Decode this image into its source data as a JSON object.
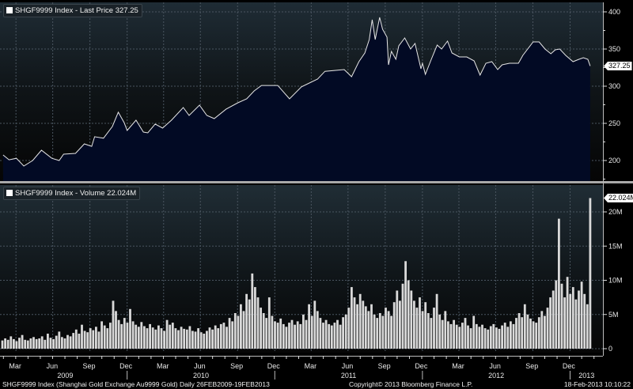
{
  "colors": {
    "price_fill_top": "#1b7486",
    "price_fill_bottom": "#020a24",
    "line": "#e6e6e6",
    "volume_bar": "#d9d9d9",
    "panel_top": "#1e2b33"
  },
  "chart_data": [
    {
      "type": "area",
      "title": "SHGF9999 Index - Last Price 327.25",
      "legend": "SHGF9999 Index - Last Price 327.25",
      "last_value_label": "327.25",
      "ylim": [
        172,
        412
      ],
      "y_ticks": [
        200,
        250,
        300,
        350,
        400
      ],
      "y_tick_labels": [
        "200",
        "250",
        "300",
        "350",
        "400"
      ],
      "grid": true,
      "x_unit": "decimal year",
      "points": [
        [
          2009.16,
          207.4
        ],
        [
          2009.2,
          201
        ],
        [
          2009.25,
          203
        ],
        [
          2009.3,
          192.6
        ],
        [
          2009.36,
          200
        ],
        [
          2009.42,
          213.8
        ],
        [
          2009.49,
          203
        ],
        [
          2009.54,
          200
        ],
        [
          2009.57,
          208.5
        ],
        [
          2009.65,
          209.6
        ],
        [
          2009.71,
          222.3
        ],
        [
          2009.76,
          219
        ],
        [
          2009.78,
          232
        ],
        [
          2009.84,
          230
        ],
        [
          2009.9,
          245.7
        ],
        [
          2009.94,
          265
        ],
        [
          2009.98,
          251
        ],
        [
          2010.0,
          240.4
        ],
        [
          2010.06,
          254.3
        ],
        [
          2010.11,
          238.3
        ],
        [
          2010.14,
          237.2
        ],
        [
          2010.19,
          249
        ],
        [
          2010.24,
          243.6
        ],
        [
          2010.3,
          254.3
        ],
        [
          2010.38,
          271.3
        ],
        [
          2010.42,
          260.6
        ],
        [
          2010.49,
          274.5
        ],
        [
          2010.54,
          260.6
        ],
        [
          2010.59,
          256.4
        ],
        [
          2010.67,
          269
        ],
        [
          2010.75,
          277.7
        ],
        [
          2010.81,
          283
        ],
        [
          2010.86,
          293.6
        ],
        [
          2010.91,
          301
        ],
        [
          2011.02,
          301
        ],
        [
          2011.1,
          283
        ],
        [
          2011.18,
          299
        ],
        [
          2011.29,
          309.6
        ],
        [
          2011.34,
          320
        ],
        [
          2011.47,
          322.3
        ],
        [
          2011.52,
          312.8
        ],
        [
          2011.57,
          333
        ],
        [
          2011.61,
          344.7
        ],
        [
          2011.64,
          362.8
        ],
        [
          2011.66,
          389.4
        ],
        [
          2011.68,
          362.8
        ],
        [
          2011.71,
          392.6
        ],
        [
          2011.73,
          376.6
        ],
        [
          2011.76,
          366
        ],
        [
          2011.77,
          328.7
        ],
        [
          2011.79,
          346.8
        ],
        [
          2011.82,
          336.2
        ],
        [
          2011.84,
          354.3
        ],
        [
          2011.88,
          364.9
        ],
        [
          2011.92,
          350
        ],
        [
          2011.95,
          357.4
        ],
        [
          2011.99,
          323.4
        ],
        [
          2012.0,
          330.9
        ],
        [
          2012.02,
          316
        ],
        [
          2012.06,
          336.2
        ],
        [
          2012.1,
          355.3
        ],
        [
          2012.13,
          350
        ],
        [
          2012.17,
          360.6
        ],
        [
          2012.2,
          344.7
        ],
        [
          2012.25,
          339.4
        ],
        [
          2012.3,
          339.4
        ],
        [
          2012.35,
          334
        ],
        [
          2012.39,
          314.9
        ],
        [
          2012.43,
          330.9
        ],
        [
          2012.47,
          333
        ],
        [
          2012.51,
          322.3
        ],
        [
          2012.54,
          328.7
        ],
        [
          2012.59,
          330.9
        ],
        [
          2012.65,
          330.9
        ],
        [
          2012.68,
          341.5
        ],
        [
          2012.75,
          359.6
        ],
        [
          2012.79,
          359.6
        ],
        [
          2012.83,
          350
        ],
        [
          2012.87,
          343.6
        ],
        [
          2012.9,
          348.9
        ],
        [
          2012.93,
          350
        ],
        [
          2012.97,
          341.5
        ],
        [
          2013.02,
          333
        ],
        [
          2013.06,
          336.2
        ],
        [
          2013.09,
          338.3
        ],
        [
          2013.12,
          336.2
        ],
        [
          2013.136,
          327.25
        ]
      ]
    },
    {
      "type": "bar",
      "title": "SHGF9999 Index - Volume 22.024M",
      "legend": "SHGF9999 Index - Volume 22.024M",
      "last_value_label": "22.024M",
      "unit": "millions",
      "x_unit": "weekly from 26FEB2009",
      "ylim": [
        0,
        23.5
      ],
      "y_ticks": [
        0,
        5,
        10,
        15,
        20
      ],
      "y_tick_labels": [
        "0",
        "5M",
        "10M",
        "15M",
        "20M"
      ],
      "grid": true,
      "values": [
        1.2,
        1.5,
        1.3,
        1.8,
        1.4,
        1.1,
        1.6,
        2.0,
        1.3,
        1.2,
        1.5,
        1.7,
        1.4,
        1.5,
        1.8,
        1.3,
        2.2,
        1.6,
        1.4,
        1.9,
        2.5,
        1.7,
        1.5,
        2.0,
        1.8,
        2.3,
        2.8,
        2.2,
        3.5,
        2.6,
        2.4,
        3.0,
        2.7,
        3.2,
        2.5,
        4.0,
        3.4,
        3.0,
        3.8,
        7.0,
        5.5,
        4.2,
        3.6,
        4.5,
        3.8,
        5.8,
        4.0,
        3.5,
        3.2,
        3.9,
        3.3,
        3.0,
        3.6,
        3.1,
        2.8,
        3.4,
        3.0,
        2.6,
        4.2,
        3.5,
        3.8,
        3.0,
        2.7,
        3.2,
        2.9,
        2.8,
        3.3,
        2.6,
        2.5,
        3.0,
        2.4,
        2.2,
        2.6,
        3.1,
        2.8,
        3.4,
        3.0,
        3.6,
        3.8,
        3.2,
        4.5,
        4.0,
        5.2,
        4.8,
        6.5,
        5.5,
        8.0,
        7.2,
        11.0,
        9.0,
        7.5,
        6.0,
        5.2,
        4.5,
        7.5,
        4.8,
        4.0,
        3.8,
        4.4,
        3.6,
        3.2,
        3.8,
        4.2,
        3.5,
        4.0,
        3.6,
        5.0,
        4.2,
        6.5,
        4.8,
        7.0,
        5.5,
        4.5,
        3.8,
        4.2,
        3.6,
        3.4,
        3.8,
        4.2,
        3.5,
        4.6,
        5.0,
        6.0,
        9.0,
        7.5,
        6.5,
        8.0,
        7.0,
        6.2,
        5.5,
        6.5,
        5.0,
        4.5,
        5.2,
        4.8,
        6.0,
        5.5,
        4.8,
        6.8,
        8.5,
        7.0,
        9.5,
        12.8,
        10.0,
        8.5,
        7.0,
        6.0,
        7.5,
        5.5,
        6.8,
        5.2,
        4.5,
        6.0,
        8.0,
        5.0,
        4.2,
        5.5,
        4.0,
        3.6,
        4.2,
        3.5,
        3.2,
        3.8,
        4.5,
        3.4,
        3.0,
        4.8,
        3.6,
        3.2,
        3.5,
        3.0,
        2.8,
        3.3,
        3.6,
        3.1,
        2.9,
        3.4,
        3.8,
        3.2,
        4.0,
        3.6,
        4.5,
        5.2,
        4.6,
        6.5,
        5.0,
        4.4,
        4.0,
        3.8,
        4.6,
        5.5,
        4.8,
        6.0,
        7.5,
        8.5,
        10.0,
        19.0,
        9.5,
        7.5,
        10.5,
        8.0,
        9.0,
        7.2,
        8.5,
        9.8,
        8.0,
        6.5,
        22.024
      ]
    }
  ],
  "x_axis": {
    "months": [
      [
        "Mar",
        2009.2
      ],
      [
        "Jun",
        2009.45
      ],
      [
        "Sep",
        2009.7
      ],
      [
        "Dec",
        2009.95
      ],
      [
        "Mar",
        2010.2
      ],
      [
        "Jun",
        2010.45
      ],
      [
        "Sep",
        2010.7
      ],
      [
        "Dec",
        2010.95
      ],
      [
        "Mar",
        2011.2
      ],
      [
        "Jun",
        2011.45
      ],
      [
        "Sep",
        2011.7
      ],
      [
        "Dec",
        2011.95
      ],
      [
        "Mar",
        2012.2
      ],
      [
        "Jun",
        2012.45
      ],
      [
        "Sep",
        2012.7
      ],
      [
        "Dec",
        2012.95
      ]
    ],
    "years": [
      "2009",
      "2010",
      "2011",
      "2012",
      "2013"
    ]
  },
  "footer": {
    "description": "SHGF9999 Index (Shanghai Gold Exchange Au9999 Gold)  Daily 26FEB2009-19FEB2013",
    "copyright": "Copyright© 2013 Bloomberg Finance L.P.",
    "timestamp": "18-Feb-2013 10:10:22"
  }
}
